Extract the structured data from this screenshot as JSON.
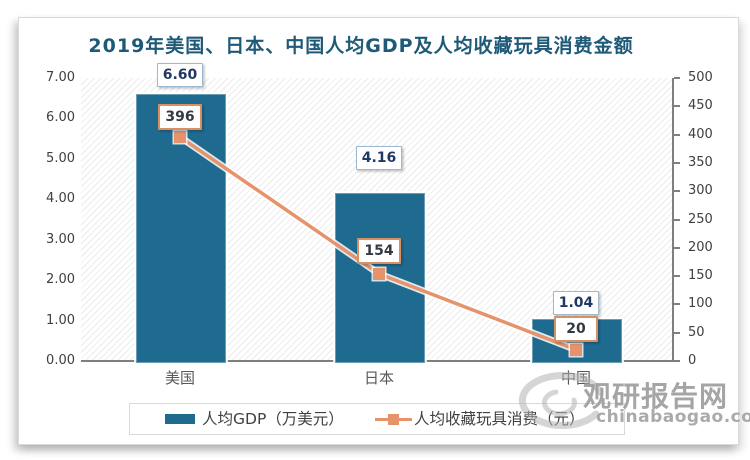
{
  "chart": {
    "title": "2019年美国、日本、中国人均GDP及人均收藏玩具消费金额",
    "categories": [
      "美国",
      "日本",
      "中国"
    ],
    "bar_value_labels": [
      "6.60",
      "4.16",
      "1.04"
    ],
    "line_value_labels": [
      "396",
      "154",
      "20"
    ],
    "left_axis_ticks": [
      "7.00",
      "6.00",
      "5.00",
      "4.00",
      "3.00",
      "2.00",
      "1.00",
      "0.00"
    ],
    "right_axis_ticks": [
      "500",
      "450",
      "400",
      "350",
      "300",
      "250",
      "200",
      "150",
      "100",
      "50",
      "0"
    ],
    "legend": {
      "bar_swatch_icon": "teal-rect-swatch",
      "bar_label": "人均GDP（万美元）",
      "line_swatch_icon": "orange-line-with-square-marker",
      "line_label": "人均收藏玩具消费（元）"
    }
  },
  "chart_data": {
    "type": "bar",
    "title": "2019年美国、日本、中国人均GDP及人均收藏玩具消费金额",
    "categories": [
      "美国",
      "日本",
      "中国"
    ],
    "series": [
      {
        "name": "人均GDP（万美元）",
        "type": "bar",
        "axis": "left",
        "values": [
          6.6,
          4.16,
          1.04
        ]
      },
      {
        "name": "人均收藏玩具消费（元）",
        "type": "line",
        "axis": "right",
        "values": [
          396,
          154,
          20
        ]
      }
    ],
    "left_ylim": [
      0,
      7
    ],
    "left_tick_step": 1.0,
    "right_ylim": [
      0,
      500
    ],
    "right_tick_step": 50,
    "grid": false,
    "plot_background": "light-diagonal-hatch",
    "legend_position": "bottom"
  },
  "watermark": {
    "logo_icon": "swirl-logo",
    "site_name": "观研报告网",
    "domain": "chinabaogao.com"
  },
  "colors": {
    "bar": "#1F6B90",
    "line": "#E6926B",
    "title": "#1E5A78",
    "axis_text": "#3F3F3F",
    "axis_line": "#7F7F7F",
    "bar_label_text": "#1F3864",
    "bar_label_border": "#9DB9CF",
    "line_label_border": "#D98F62",
    "legend_border": "#D9D9D9",
    "watermark": "#9C9C9C"
  }
}
